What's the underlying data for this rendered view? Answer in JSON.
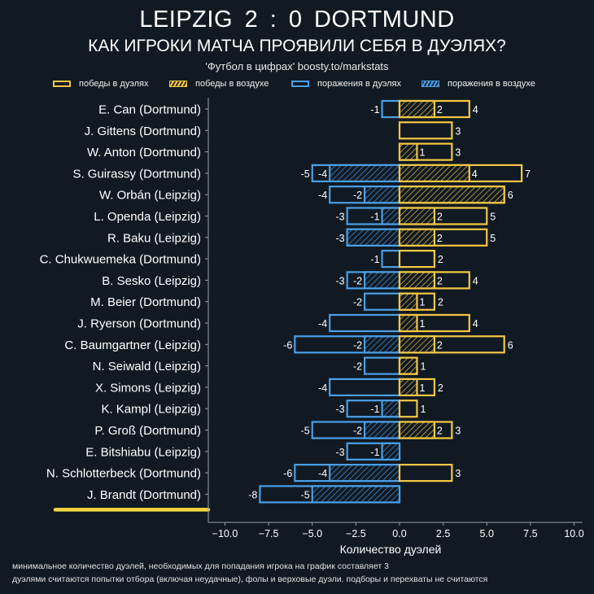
{
  "header": {
    "title": "LEIPZIG    2 : 0    DORTMUND",
    "subtitle": "КАК ИГРОКИ МАТЧА ПРОЯВИЛИ СЕБЯ В ДУЭЛЯХ?",
    "source": "'Футбол в цифрах' boosty.to/markstats"
  },
  "colors": {
    "background": "#111a23",
    "wins": "#f5c843",
    "losses": "#4a9fe8",
    "axis": "#9aa0a6",
    "text": "#ffffff",
    "highlight": "#f5d63d"
  },
  "footnotes": [
    "минимальное количество дуэлей, необходимых для попадания игрока на график составляет 3",
    "дуэлями считаются попытки отбора (включая неудачные), фолы и верховые дуэли. подборы и перехваты не считаются"
  ],
  "chart_data": {
    "type": "bar",
    "orientation": "horizontal",
    "stacked_overlay": true,
    "title": "LEIPZIG 2 : 0 DORTMUND",
    "subtitle": "КАК ИГРОКИ МАТЧА ПРОЯВИЛИ СЕБЯ В ДУЭЛЯХ?",
    "xlabel": "Количество дуэлей",
    "ylabel": "",
    "xlim": [
      -11,
      10
    ],
    "xticks": [
      -10.0,
      -7.5,
      -5.0,
      -2.5,
      0.0,
      2.5,
      5.0,
      7.5,
      10.0
    ],
    "xtick_labels": [
      "−10.0",
      "−7.5",
      "−5.0",
      "−2.5",
      "0.0",
      "2.5",
      "5.0",
      "7.5",
      "10.0"
    ],
    "grid": false,
    "legend_position": "top",
    "legend": [
      {
        "key": "wins_total",
        "label": "победы в дуэлях",
        "style": "outline",
        "color": "#f5c843"
      },
      {
        "key": "wins_aerial",
        "label": "победы в воздухе",
        "style": "hatched",
        "color": "#f5c843"
      },
      {
        "key": "losses_total",
        "label": "поражения в дуэлях",
        "style": "outline",
        "color": "#4a9fe8"
      },
      {
        "key": "losses_aerial",
        "label": "поражения в воздухе",
        "style": "hatched",
        "color": "#4a9fe8"
      }
    ],
    "categories": [
      "E. Can (Dortmund)",
      "J. Gittens (Dortmund)",
      "W. Anton (Dortmund)",
      "S. Guirassy (Dortmund)",
      "W. Orbán (Leipzig)",
      "L. Openda (Leipzig)",
      "R. Baku (Leipzig)",
      "C. Chukwuemeka (Dortmund)",
      "B. Sesko (Leipzig)",
      "M. Beier (Dortmund)",
      "J. Ryerson (Dortmund)",
      "C. Baumgartner (Leipzig)",
      "N. Seiwald (Leipzig)",
      "X. Simons (Leipzig)",
      "K. Kampl (Leipzig)",
      "P. Groß (Dortmund)",
      "E. Bitshiabu (Leipzig)",
      "N. Schlotterbeck (Dortmund)",
      "J. Brandt (Dortmund)"
    ],
    "series": [
      {
        "name": "победы в дуэлях",
        "key": "wins_total",
        "values": [
          4,
          3,
          3,
          7,
          6,
          5,
          5,
          2,
          4,
          2,
          4,
          6,
          1,
          2,
          1,
          3,
          0,
          3,
          0
        ]
      },
      {
        "name": "победы в воздухе",
        "key": "wins_aerial",
        "values": [
          2,
          0,
          1,
          4,
          6,
          2,
          2,
          0,
          2,
          1,
          1,
          2,
          1,
          1,
          0,
          2,
          0,
          0,
          0
        ]
      },
      {
        "name": "поражения в дуэлях",
        "key": "losses_total",
        "values": [
          -1,
          0,
          0,
          -5,
          -4,
          -3,
          -3,
          -1,
          -3,
          -2,
          -4,
          -6,
          -2,
          -4,
          -3,
          -5,
          -3,
          -6,
          -8
        ]
      },
      {
        "name": "поражения в воздухе",
        "key": "losses_aerial",
        "values": [
          0,
          0,
          0,
          -4,
          -2,
          -1,
          -3,
          0,
          -2,
          0,
          0,
          -2,
          0,
          0,
          -1,
          -2,
          -1,
          -4,
          -5
        ]
      }
    ],
    "highlighted_category": "J. Brandt (Dortmund)"
  }
}
